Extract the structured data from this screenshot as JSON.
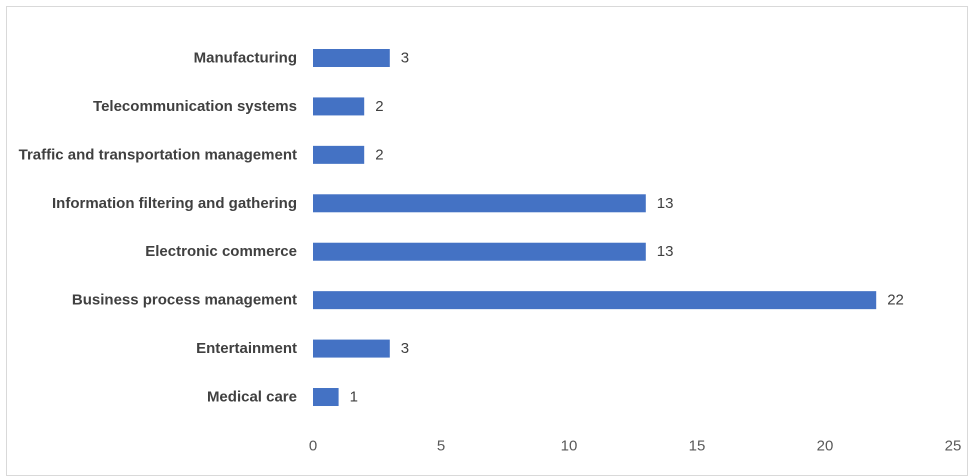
{
  "chart_data": {
    "type": "bar",
    "orientation": "horizontal",
    "categories": [
      "Manufacturing",
      "Telecommunication systems",
      "Traffic and transportation management",
      "Information filtering and gathering",
      "Electronic commerce",
      "Business process management",
      "Entertainment",
      "Medical care"
    ],
    "values": [
      3,
      2,
      2,
      13,
      13,
      22,
      3,
      1
    ],
    "xlim": [
      0,
      25
    ],
    "xticks": [
      0,
      5,
      10,
      15,
      20,
      25
    ],
    "grid": false,
    "data_labels": true,
    "bar_color": "#4472c4",
    "title": "",
    "xlabel": "",
    "ylabel": ""
  }
}
